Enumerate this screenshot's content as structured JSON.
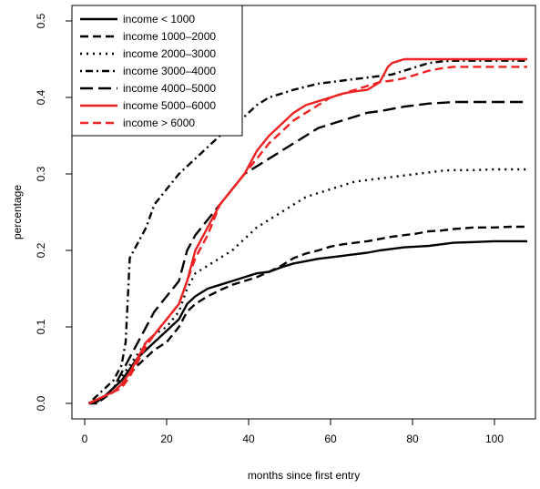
{
  "chart_data": {
    "type": "line",
    "title": "",
    "xlabel": "months since first entry",
    "ylabel": "percentage",
    "xlim": [
      0,
      108
    ],
    "ylim": [
      0,
      0.5
    ],
    "xticks": [
      0,
      20,
      40,
      60,
      80,
      100
    ],
    "yticks": [
      0.0,
      0.1,
      0.2,
      0.3,
      0.4,
      0.5
    ],
    "xtick_labels": [
      "0",
      "20",
      "40",
      "60",
      "80",
      "100"
    ],
    "ytick_labels": [
      "0.0",
      "0.1",
      "0.2",
      "0.3",
      "0.4",
      "0.5"
    ],
    "grid": false,
    "legend_position": "top-left",
    "series": [
      {
        "name": "income < 1000",
        "color": "#000000",
        "dash": "solid",
        "x": [
          1,
          3,
          5,
          7,
          9,
          11,
          13,
          15,
          17,
          20,
          23,
          25,
          27,
          30,
          33,
          36,
          39,
          42,
          45,
          48,
          51,
          54,
          57,
          60,
          63,
          66,
          69,
          72,
          75,
          78,
          81,
          84,
          87,
          90,
          95,
          100,
          104,
          108
        ],
        "y": [
          0.0,
          0.002,
          0.01,
          0.02,
          0.03,
          0.045,
          0.06,
          0.07,
          0.08,
          0.095,
          0.11,
          0.13,
          0.14,
          0.15,
          0.155,
          0.16,
          0.165,
          0.17,
          0.172,
          0.178,
          0.183,
          0.186,
          0.189,
          0.191,
          0.193,
          0.195,
          0.197,
          0.2,
          0.202,
          0.204,
          0.205,
          0.206,
          0.208,
          0.21,
          0.211,
          0.212,
          0.212,
          0.212
        ]
      },
      {
        "name": "income 1000–2000",
        "color": "#000000",
        "dash": "dash",
        "x": [
          1,
          3,
          5,
          7,
          9,
          11,
          13,
          15,
          17,
          20,
          23,
          25,
          27,
          30,
          33,
          36,
          39,
          42,
          45,
          48,
          51,
          54,
          57,
          60,
          63,
          66,
          69,
          72,
          75,
          78,
          81,
          84,
          87,
          90,
          95,
          100,
          104,
          108
        ],
        "y": [
          0.0,
          0.0,
          0.008,
          0.015,
          0.025,
          0.038,
          0.05,
          0.06,
          0.07,
          0.08,
          0.1,
          0.12,
          0.13,
          0.14,
          0.148,
          0.155,
          0.16,
          0.165,
          0.172,
          0.18,
          0.19,
          0.196,
          0.2,
          0.205,
          0.208,
          0.21,
          0.212,
          0.215,
          0.218,
          0.22,
          0.222,
          0.225,
          0.226,
          0.228,
          0.23,
          0.23,
          0.231,
          0.231
        ]
      },
      {
        "name": "income 2000–3000",
        "color": "#000000",
        "dash": "dot",
        "x": [
          1,
          3,
          5,
          7,
          9,
          11,
          13,
          15,
          17,
          20,
          23,
          25,
          27,
          30,
          33,
          36,
          39,
          42,
          45,
          48,
          51,
          54,
          57,
          60,
          63,
          66,
          69,
          72,
          75,
          78,
          81,
          84,
          87,
          90,
          95,
          100,
          104,
          108
        ],
        "y": [
          0.0,
          0.002,
          0.01,
          0.02,
          0.035,
          0.05,
          0.065,
          0.08,
          0.09,
          0.1,
          0.12,
          0.15,
          0.17,
          0.18,
          0.19,
          0.2,
          0.215,
          0.23,
          0.24,
          0.25,
          0.26,
          0.27,
          0.275,
          0.28,
          0.285,
          0.29,
          0.292,
          0.294,
          0.296,
          0.298,
          0.3,
          0.302,
          0.304,
          0.305,
          0.305,
          0.306,
          0.306,
          0.306
        ]
      },
      {
        "name": "income 3000–4000",
        "color": "#000000",
        "dash": "dashdot",
        "x": [
          1,
          3,
          5,
          7,
          9,
          10,
          11,
          12,
          13,
          15,
          17,
          20,
          23,
          25,
          27,
          30,
          33,
          36,
          39,
          42,
          45,
          48,
          51,
          54,
          57,
          60,
          63,
          66,
          69,
          72,
          75,
          78,
          81,
          84,
          87,
          90,
          95,
          100,
          104,
          108
        ],
        "y": [
          0.0,
          0.01,
          0.02,
          0.03,
          0.05,
          0.08,
          0.19,
          0.2,
          0.21,
          0.23,
          0.26,
          0.28,
          0.3,
          0.31,
          0.32,
          0.335,
          0.35,
          0.36,
          0.375,
          0.39,
          0.4,
          0.405,
          0.41,
          0.414,
          0.418,
          0.42,
          0.422,
          0.424,
          0.426,
          0.428,
          0.43,
          0.435,
          0.44,
          0.445,
          0.447,
          0.448,
          0.448,
          0.448,
          0.448,
          0.448
        ]
      },
      {
        "name": "income 4000–5000",
        "color": "#000000",
        "dash": "longdash",
        "x": [
          1,
          3,
          5,
          7,
          9,
          11,
          13,
          15,
          17,
          20,
          23,
          25,
          27,
          30,
          33,
          36,
          39,
          42,
          45,
          48,
          51,
          54,
          57,
          60,
          63,
          66,
          69,
          72,
          75,
          78,
          81,
          84,
          87,
          90,
          95,
          100,
          104,
          108
        ],
        "y": [
          0.0,
          0.005,
          0.01,
          0.02,
          0.04,
          0.06,
          0.08,
          0.1,
          0.12,
          0.14,
          0.16,
          0.2,
          0.22,
          0.24,
          0.26,
          0.28,
          0.3,
          0.31,
          0.32,
          0.33,
          0.34,
          0.35,
          0.36,
          0.365,
          0.37,
          0.375,
          0.38,
          0.382,
          0.385,
          0.388,
          0.39,
          0.392,
          0.393,
          0.394,
          0.394,
          0.394,
          0.394,
          0.394
        ]
      },
      {
        "name": "income 5000–6000",
        "color": "#ee2222",
        "dash": "solid",
        "x": [
          1,
          3,
          5,
          7,
          9,
          11,
          13,
          15,
          17,
          20,
          23,
          25,
          27,
          30,
          33,
          36,
          39,
          42,
          45,
          48,
          51,
          54,
          57,
          60,
          63,
          66,
          69,
          72,
          74,
          75,
          78,
          81,
          84,
          87,
          90,
          95,
          100,
          104,
          108
        ],
        "y": [
          0.0,
          0.005,
          0.01,
          0.015,
          0.025,
          0.04,
          0.06,
          0.08,
          0.09,
          0.11,
          0.13,
          0.16,
          0.2,
          0.23,
          0.26,
          0.28,
          0.3,
          0.33,
          0.35,
          0.365,
          0.38,
          0.39,
          0.395,
          0.4,
          0.405,
          0.408,
          0.41,
          0.42,
          0.44,
          0.445,
          0.45,
          0.45,
          0.45,
          0.45,
          0.45,
          0.45,
          0.45,
          0.45,
          0.45
        ]
      },
      {
        "name": "income > 6000",
        "color": "#ee2222",
        "dash": "dash",
        "x": [
          1,
          3,
          5,
          7,
          9,
          11,
          13,
          15,
          17,
          20,
          23,
          25,
          27,
          30,
          33,
          36,
          39,
          42,
          45,
          48,
          51,
          54,
          57,
          60,
          63,
          66,
          69,
          72,
          75,
          78,
          81,
          84,
          87,
          90,
          95,
          100,
          104,
          108
        ],
        "y": [
          0.0,
          0.005,
          0.01,
          0.015,
          0.02,
          0.035,
          0.055,
          0.075,
          0.09,
          0.11,
          0.13,
          0.16,
          0.19,
          0.22,
          0.26,
          0.28,
          0.3,
          0.32,
          0.34,
          0.355,
          0.37,
          0.38,
          0.39,
          0.4,
          0.405,
          0.41,
          0.415,
          0.42,
          0.422,
          0.425,
          0.43,
          0.435,
          0.438,
          0.44,
          0.44,
          0.44,
          0.44,
          0.44
        ]
      }
    ]
  }
}
